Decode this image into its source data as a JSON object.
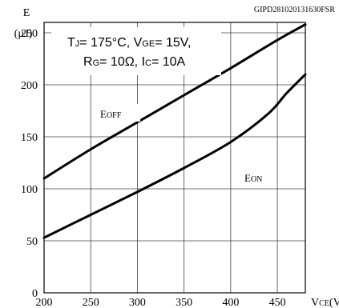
{
  "chart_data": {
    "type": "line",
    "figure_code": "GIPD281020131630FSR",
    "y_label_main": "E",
    "y_label_unit": "(µJ)",
    "x_label_main": "V",
    "x_label_sub": "CE",
    "x_label_unit": "(V)",
    "xlim": [
      200,
      480
    ],
    "ylim": [
      0,
      260
    ],
    "x_ticks": [
      "200",
      "250",
      "300",
      "350",
      "400",
      "450"
    ],
    "y_ticks": [
      "0",
      "50",
      "100",
      "150",
      "200",
      "250"
    ],
    "grid": true,
    "conditions": {
      "line1": {
        "tj_main": "T",
        "tj_sub": "J",
        "tj_val": "= 175°C, ",
        "vge_main": "V",
        "vge_sub": "GE",
        "vge_val": "= 15V,"
      },
      "line2": {
        "rg_main": "R",
        "rg_sub": "G",
        "rg_val": "= 10Ω, ",
        "ic_main": "I",
        "ic_sub": "C",
        "ic_val": "= 10A"
      }
    },
    "series": [
      {
        "name_main": "E",
        "name_sub": "OFF",
        "x": [
          200,
          250,
          300,
          350,
          400,
          450,
          480
        ],
        "y": [
          110,
          138,
          164,
          190,
          216,
          243,
          258
        ]
      },
      {
        "name_main": "E",
        "name_sub": "ON",
        "x": [
          200,
          250,
          300,
          350,
          400,
          440,
          460,
          480
        ],
        "y": [
          53,
          75,
          97,
          120,
          145,
          172,
          192,
          210
        ]
      }
    ]
  }
}
